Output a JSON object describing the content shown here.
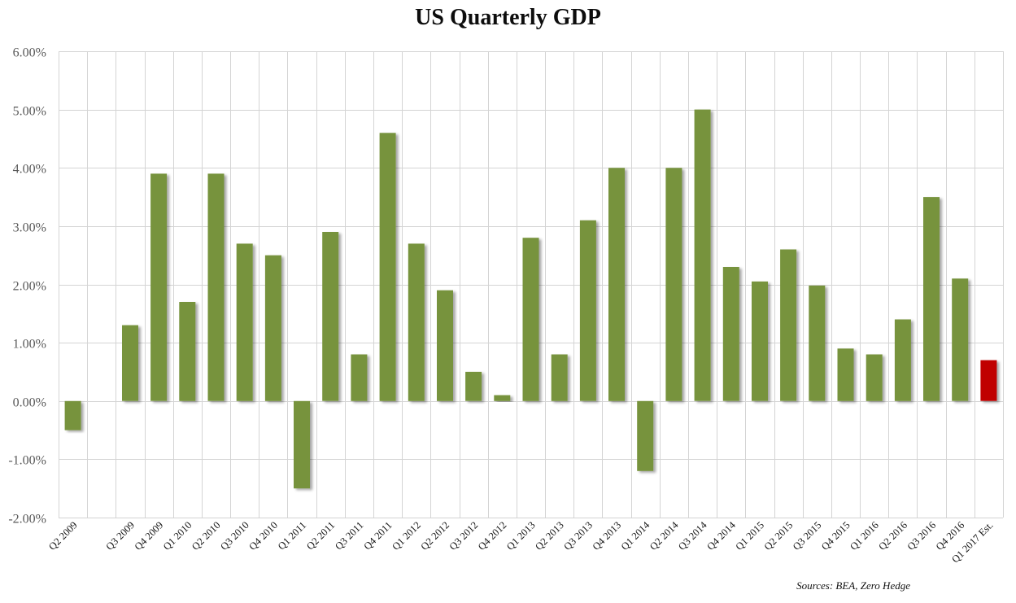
{
  "chart_data": {
    "type": "bar",
    "title": "US Quarterly GDP",
    "xlabel": "",
    "ylabel": "",
    "ylim": [
      -2,
      6
    ],
    "yticks": [
      -2,
      -1,
      0,
      1,
      2,
      3,
      4,
      5,
      6
    ],
    "ytick_labels": [
      "-2.00%",
      "-1.00%",
      "0.00%",
      "1.00%",
      "2.00%",
      "3.00%",
      "4.00%",
      "5.00%",
      "6.00%"
    ],
    "grid": true,
    "legend": "none",
    "categories": [
      "Q2 2009",
      "",
      "Q3 2009",
      "Q4 2009",
      "Q1 2010",
      "Q2 2010",
      "Q3 2010",
      "Q4 2010",
      "Q1 2011",
      "Q2 2011",
      "Q3 2011",
      "Q4 2011",
      "Q1 2012",
      "Q2 2012",
      "Q3 2012",
      "Q4 2012",
      "Q1 2013",
      "Q2 2013",
      "Q3 2013",
      "Q4 2013",
      "Q1 2014",
      "Q2 2014",
      "Q3 2014",
      "Q4 2014",
      "Q1 2015",
      "Q2 2015",
      "Q3 2015",
      "Q4 2015",
      "Q1 2016",
      "Q2 2016",
      "Q3 2016",
      "Q4 2016",
      "Q1 2017 Est."
    ],
    "series": [
      {
        "name": "US Quarterly GDP",
        "unit": "%",
        "values": [
          -0.5,
          null,
          1.3,
          3.9,
          1.7,
          3.9,
          2.7,
          2.5,
          -1.5,
          2.9,
          0.8,
          4.6,
          2.7,
          1.9,
          0.5,
          0.1,
          2.8,
          0.8,
          3.1,
          4.0,
          -1.2,
          4.0,
          5.0,
          2.3,
          2.05,
          2.6,
          1.98,
          0.9,
          0.8,
          1.4,
          3.5,
          2.1,
          0.7
        ],
        "colors": {
          "actual": "#77933C",
          "estimate": "#C00000"
        },
        "estimate_categories": [
          "Q1 2017 Est."
        ]
      }
    ],
    "source": "Sources: BEA, Zero Hedge"
  }
}
